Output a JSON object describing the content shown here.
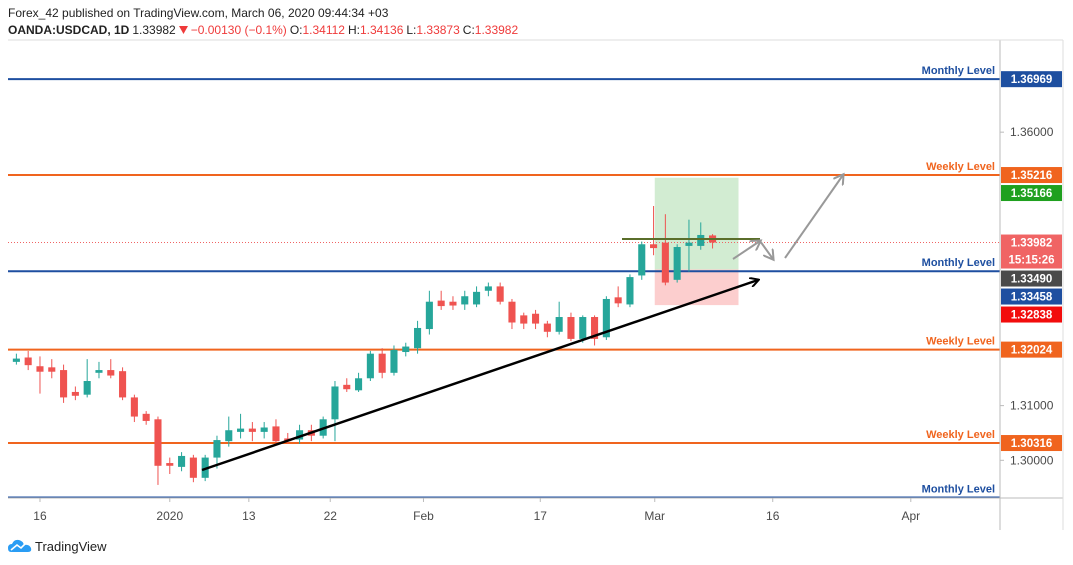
{
  "header": {
    "published": "Forex_42 published on TradingView.com, March 06, 2020 09:44:34 +03",
    "symbol": "OANDA:USDCAD, 1D",
    "last": "1.33982",
    "change": "−0.00130 (−0.1%)",
    "ohlc": [
      {
        "key": "O:",
        "value": "1.34112"
      },
      {
        "key": "H:",
        "value": "1.34136"
      },
      {
        "key": "L:",
        "value": "1.33873"
      },
      {
        "key": "C:",
        "value": "1.33982"
      }
    ]
  },
  "footer": {
    "brand": "TradingView"
  },
  "chart_data": {
    "type": "candlestick",
    "x": [
      -2,
      -1,
      0,
      1,
      2,
      3,
      4,
      5,
      6,
      7,
      8,
      9,
      10,
      11,
      12,
      13,
      14,
      15,
      16,
      17,
      18,
      19,
      20,
      21,
      22,
      23,
      24,
      25,
      26,
      27,
      28,
      29,
      30,
      31,
      32,
      33,
      34,
      35,
      36,
      37,
      38,
      39,
      40,
      41,
      42,
      43,
      44,
      45,
      46,
      47,
      48,
      49,
      50,
      51,
      52,
      53,
      54,
      55,
      56,
      57
    ],
    "open": [
      1.318,
      1.3188,
      1.3172,
      1.317,
      1.3165,
      1.3125,
      1.312,
      1.316,
      1.3165,
      1.3163,
      1.3115,
      1.3085,
      1.3075,
      1.2995,
      1.2988,
      1.3005,
      1.2968,
      1.3005,
      1.3035,
      1.3052,
      1.3058,
      1.3052,
      1.3062,
      1.304,
      1.3038,
      1.3055,
      1.3045,
      1.3075,
      1.3138,
      1.3128,
      1.315,
      1.3195,
      1.316,
      1.3198,
      1.3205,
      1.324,
      1.3292,
      1.329,
      1.3285,
      1.3285,
      1.331,
      1.3318,
      1.329,
      1.3265,
      1.3268,
      1.325,
      1.3235,
      1.3262,
      1.3222,
      1.3262,
      1.3225,
      1.3298,
      1.3285,
      1.3338,
      1.3395,
      1.3398,
      1.333,
      1.3392,
      1.3392,
      1.34112
    ],
    "high": [
      1.3195,
      1.32,
      1.319,
      1.3185,
      1.3175,
      1.3135,
      1.3185,
      1.318,
      1.3185,
      1.317,
      1.312,
      1.309,
      1.308,
      1.3005,
      1.3015,
      1.301,
      1.301,
      1.3045,
      1.308,
      1.3085,
      1.307,
      1.307,
      1.3075,
      1.305,
      1.3065,
      1.3065,
      1.308,
      1.3145,
      1.315,
      1.316,
      1.32,
      1.3205,
      1.321,
      1.3215,
      1.3255,
      1.331,
      1.331,
      1.33,
      1.331,
      1.3318,
      1.3325,
      1.3325,
      1.3295,
      1.327,
      1.3275,
      1.3255,
      1.329,
      1.327,
      1.3265,
      1.3265,
      1.33,
      1.3318,
      1.334,
      1.34,
      1.3465,
      1.345,
      1.3395,
      1.344,
      1.3435,
      1.34136
    ],
    "low": [
      1.3175,
      1.3165,
      1.3122,
      1.315,
      1.3105,
      1.311,
      1.3115,
      1.315,
      1.315,
      1.311,
      1.307,
      1.3065,
      1.2955,
      1.2975,
      1.298,
      1.296,
      1.2962,
      1.2985,
      1.3025,
      1.304,
      1.3035,
      1.304,
      1.303,
      1.303,
      1.303,
      1.3035,
      1.304,
      1.3035,
      1.3125,
      1.3125,
      1.3145,
      1.315,
      1.3155,
      1.319,
      1.3195,
      1.323,
      1.3275,
      1.3275,
      1.3275,
      1.328,
      1.33,
      1.3285,
      1.324,
      1.324,
      1.324,
      1.3225,
      1.323,
      1.3218,
      1.3215,
      1.321,
      1.322,
      1.328,
      1.328,
      1.333,
      1.3375,
      1.332,
      1.3325,
      1.3345,
      1.3385,
      1.33873
    ],
    "close": [
      1.3186,
      1.3174,
      1.3162,
      1.3162,
      1.3115,
      1.3118,
      1.3145,
      1.3165,
      1.3155,
      1.3115,
      1.308,
      1.3072,
      1.299,
      1.299,
      1.3008,
      1.2968,
      1.3005,
      1.3037,
      1.3055,
      1.3058,
      1.3052,
      1.306,
      1.3035,
      1.3035,
      1.3055,
      1.3045,
      1.3075,
      1.3135,
      1.313,
      1.315,
      1.3195,
      1.316,
      1.3202,
      1.3208,
      1.3242,
      1.329,
      1.3282,
      1.3283,
      1.33,
      1.3308,
      1.3318,
      1.329,
      1.3252,
      1.325,
      1.325,
      1.3235,
      1.3262,
      1.3222,
      1.3262,
      1.3222,
      1.3295,
      1.3287,
      1.3335,
      1.3395,
      1.3388,
      1.3325,
      1.339,
      1.3398,
      1.3412,
      1.33982
    ],
    "up_color": "#26a69a",
    "down_color": "#ef5350",
    "xlim": [
      -2.71,
      81.36
    ],
    "xticks": [
      {
        "value": 0,
        "label": "16"
      },
      {
        "value": 11,
        "label": "2020"
      },
      {
        "value": 17.7,
        "label": "13"
      },
      {
        "value": 24.6,
        "label": "22"
      },
      {
        "value": 32.5,
        "label": "Feb"
      },
      {
        "value": 42.4,
        "label": "17"
      },
      {
        "value": 52.1,
        "label": "Mar"
      },
      {
        "value": 62.1,
        "label": "16"
      },
      {
        "value": 73.8,
        "label": "Apr"
      }
    ],
    "ylim": [
      1.29311,
      1.37685
    ],
    "yticks": [
      {
        "value": 1.36,
        "label": "1.36000"
      },
      {
        "value": 1.31,
        "label": "1.31000"
      },
      {
        "value": 1.3,
        "label": "1.30000"
      }
    ],
    "levels": [
      {
        "name": "Monthly Level",
        "value": 1.36969,
        "color": "#1e4fa0"
      },
      {
        "name": "Weekly Level",
        "value": 1.35216,
        "color": "#f0641e"
      },
      {
        "name": "Monthly Level",
        "value": 1.33458,
        "color": "#1e4fa0"
      },
      {
        "name": "Weekly Level",
        "value": 1.32024,
        "color": "#f0641e"
      },
      {
        "name": "Weekly Level",
        "value": 1.30316,
        "color": "#f0641e"
      },
      {
        "name": "Monthly Level",
        "value": 1.2932,
        "color": "#1e4fa0"
      }
    ],
    "last": 1.33982,
    "last_color": "#f06464",
    "countdown": "15:15:26",
    "position": {
      "x_range": [
        52.1,
        59.2
      ],
      "entry": {
        "value": 1.3349,
        "label": "1.33490"
      },
      "target": 1.35166,
      "stop": 1.32838,
      "target_color": "#1fa01f",
      "stop_color": "#f20c0c",
      "entry_color": "#4a4a4a"
    }
  }
}
